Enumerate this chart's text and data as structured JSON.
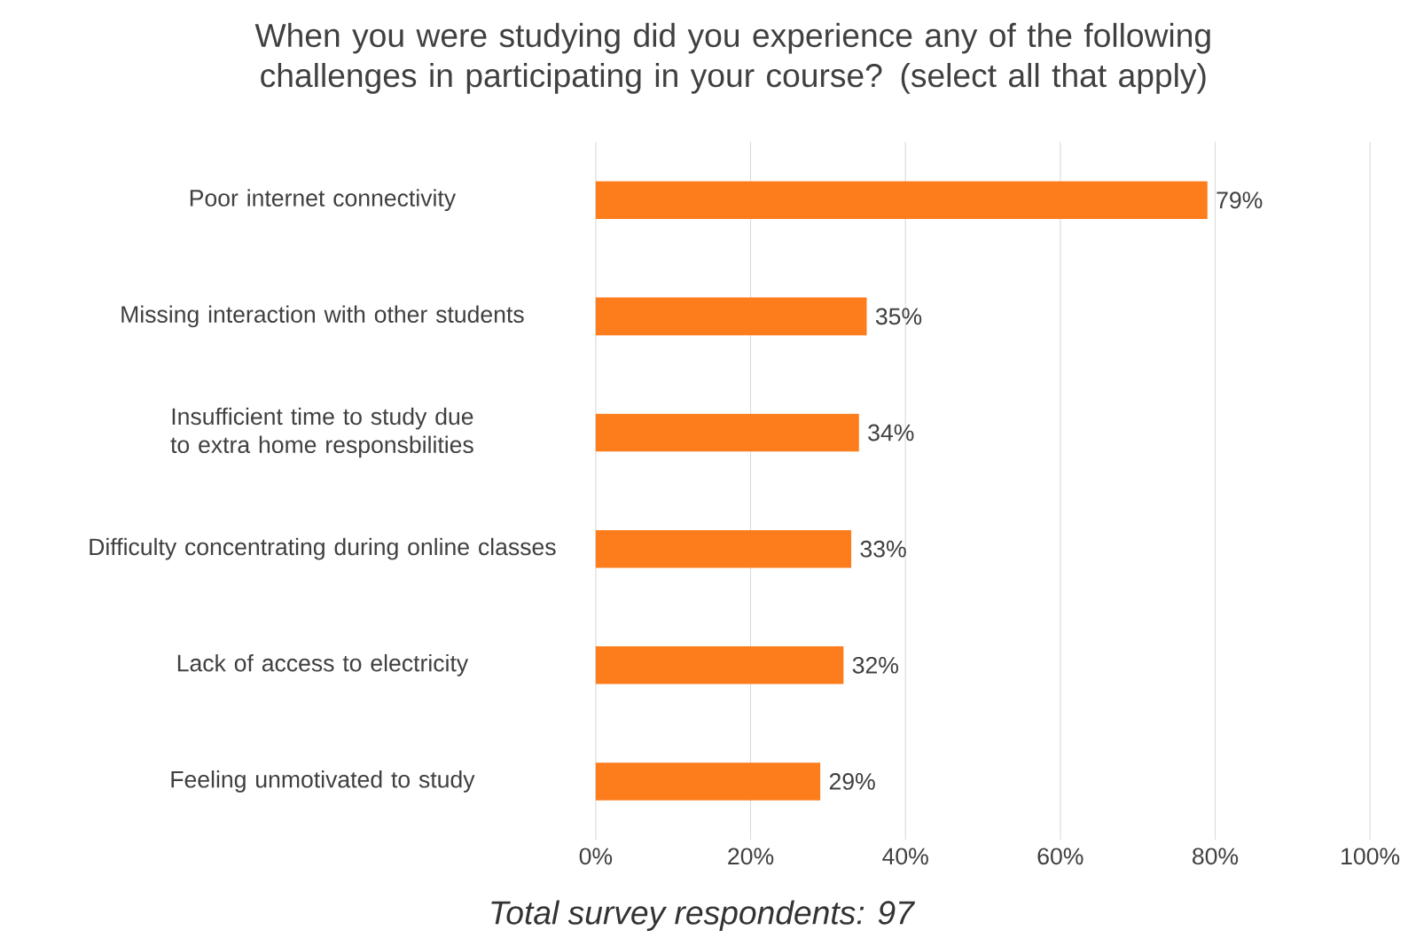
{
  "chart_data": {
    "type": "bar",
    "orientation": "horizontal",
    "title": "When you were studying did you experience any of the following challenges in participating in your course? (select all that apply)",
    "categories": [
      "Poor internet connectivity",
      "Missing interaction with other students",
      "Insufficient time to study due to extra home responsbilities",
      "Difficulty concentrating during online classes",
      "Lack of access to electricity",
      "Feeling unmotivated to study"
    ],
    "values": [
      79,
      35,
      34,
      33,
      32,
      29
    ],
    "value_labels": [
      "79%",
      "35%",
      "34%",
      "33%",
      "32%",
      "29%"
    ],
    "color": "#fd7c1b",
    "xlim": [
      0,
      100
    ],
    "xticks": [
      {
        "value": 0,
        "label": "0%"
      },
      {
        "value": 20,
        "label": "20%"
      },
      {
        "value": 40,
        "label": "40%"
      },
      {
        "value": 60,
        "label": "60%"
      },
      {
        "value": 80,
        "label": "80%"
      },
      {
        "value": 100,
        "label": "100%"
      }
    ],
    "grid": "x",
    "annotations": [
      "*Total survey respondents: 97*"
    ]
  }
}
